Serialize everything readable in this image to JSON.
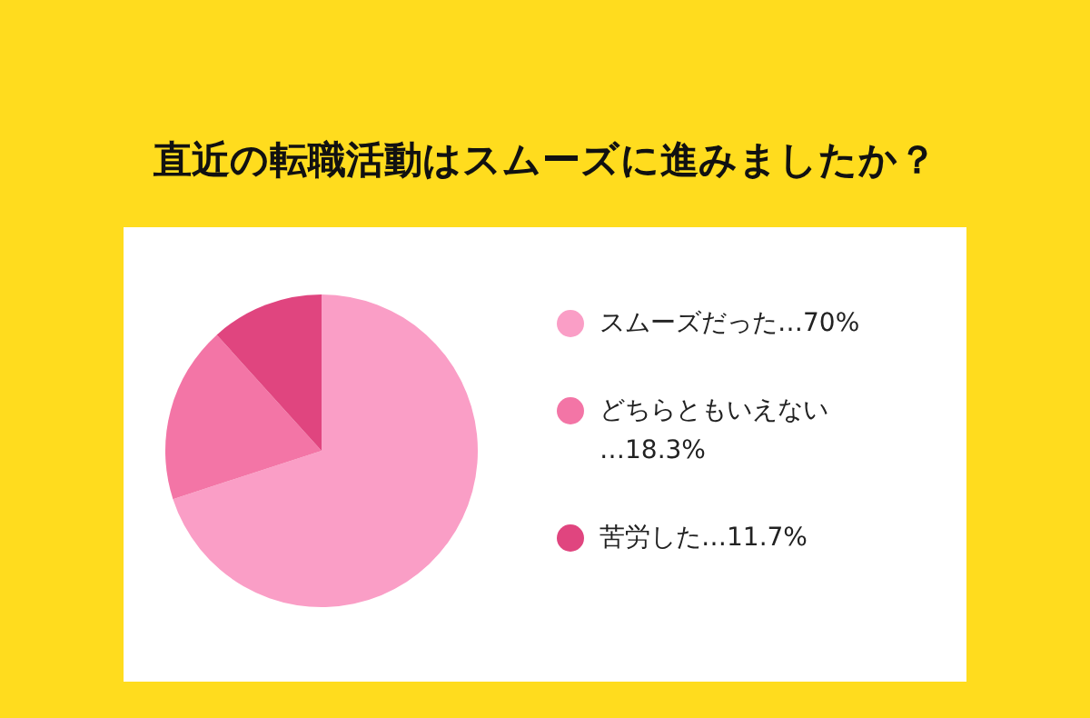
{
  "chart_data": {
    "type": "pie",
    "title": "直近の転職活動はスムーズに進みましたか？",
    "categories": [
      "スムーズだった",
      "どちらともいえない",
      "苦労した"
    ],
    "values": [
      70,
      18.3,
      11.7
    ],
    "colors": [
      "#fa9ec6",
      "#f375a6",
      "#e0457f"
    ],
    "value_labels": [
      "…70%",
      "…18.3%",
      "…11.7%"
    ],
    "legend": "right"
  }
}
